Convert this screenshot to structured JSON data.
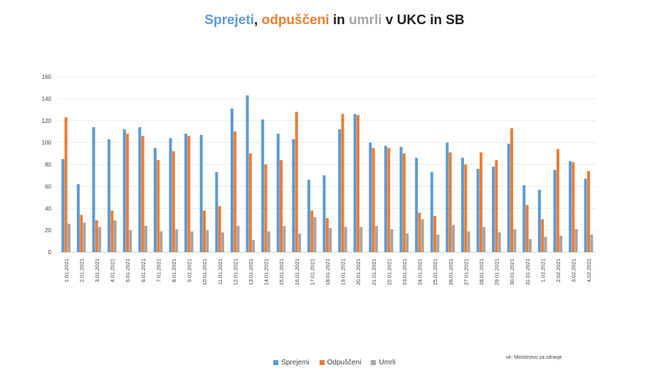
{
  "chart_data": {
    "type": "bar",
    "title_parts": [
      {
        "text": "Sprejeti",
        "color": "#5b9bd5"
      },
      {
        "text": ", ",
        "color": "#1f1f1f"
      },
      {
        "text": "odpuščeni",
        "color": "#ed7d31"
      },
      {
        "text": " in ",
        "color": "#1f1f1f"
      },
      {
        "text": "umrli",
        "color": "#a5a5a5"
      },
      {
        "text": " v UKC in SB",
        "color": "#1f1f1f"
      }
    ],
    "categories": [
      "1.01.2021",
      "2.01.2021",
      "3.01.2021",
      "4.01.2021",
      "5.01.2021",
      "6.01.2021",
      "7.01.2021",
      "8.01.2021",
      "9.01.2021",
      "10.01.2021",
      "11.01.2021",
      "12.01.2021",
      "13.01.2021",
      "14.01.2021",
      "15.01.2021",
      "16.01.2021",
      "17.01.2021",
      "18.01.2021",
      "19.01.2021",
      "20.01.2021",
      "21.01.2021",
      "22.01.2021",
      "23.01.2021",
      "24.01.2021",
      "25.01.2021",
      "26.01.2021",
      "27.01.2021",
      "28.01.2021",
      "29.01.2021",
      "30.01.2021",
      "31.01.2021",
      "1.02.2021",
      "2.02.2021",
      "3.02.2021",
      "4.02.2021"
    ],
    "series": [
      {
        "name": "Sprejemi",
        "color": "#5b9bd5",
        "values": [
          85,
          62,
          114,
          103,
          112,
          114,
          95,
          104,
          108,
          107,
          73,
          131,
          143,
          121,
          108,
          103,
          66,
          70,
          112,
          126,
          100,
          97,
          96,
          86,
          73,
          100,
          86,
          76,
          78,
          99,
          61,
          57,
          75,
          83,
          67
        ]
      },
      {
        "name": "Odpuščeni",
        "color": "#ed7d31",
        "values": [
          123,
          34,
          29,
          38,
          108,
          106,
          84,
          92,
          106,
          38,
          42,
          110,
          90,
          80,
          84,
          128,
          38,
          31,
          126,
          125,
          95,
          95,
          90,
          36,
          33,
          91,
          80,
          91,
          84,
          113,
          43,
          30,
          94,
          82,
          74
        ]
      },
      {
        "name": "Umrli",
        "color": "#a5a5a5",
        "values": [
          26,
          27,
          23,
          29,
          20,
          24,
          19,
          21,
          19,
          20,
          18,
          24,
          11,
          19,
          24,
          17,
          32,
          22,
          23,
          23,
          24,
          21,
          17,
          30,
          16,
          25,
          19,
          23,
          18,
          21,
          12,
          14,
          15,
          21,
          16
        ]
      }
    ],
    "ylim": [
      0,
      160
    ],
    "yticks": [
      "0",
      "20",
      "40",
      "60",
      "80",
      "100",
      "120",
      "140",
      "160"
    ],
    "grid": true,
    "legend_position": "bottom"
  },
  "source_note": "vir: Ministrstvo za zdravje"
}
